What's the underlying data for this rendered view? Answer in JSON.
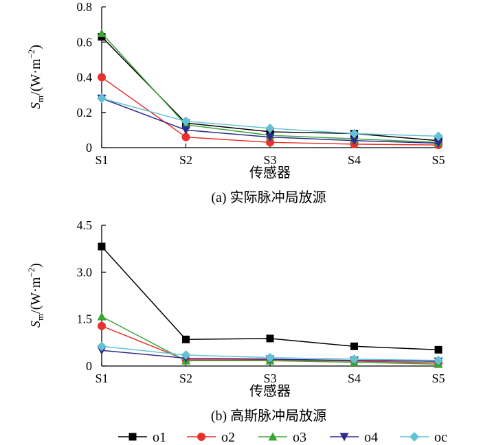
{
  "chart_data": [
    {
      "type": "line",
      "title": "(a)  实际脉冲局放源",
      "xlabel": "传感器",
      "ylabel_main": "S",
      "ylabel_sub": "m",
      "ylabel_unit": "/(W·m",
      "ylabel_exp": "−2",
      "ylabel_close": ")",
      "categories": [
        "S1",
        "S2",
        "S3",
        "S4",
        "S5"
      ],
      "ylim": [
        0,
        0.8
      ],
      "yticks": [
        "0",
        "0.2",
        "0.4",
        "0.6",
        "0.8"
      ],
      "yticks_values": [
        0,
        0.2,
        0.4,
        0.6,
        0.8
      ],
      "grid": false,
      "series": [
        {
          "name": "o1",
          "color": "#000000",
          "marker": "square",
          "values": [
            0.63,
            0.14,
            0.09,
            0.08,
            0.04
          ]
        },
        {
          "name": "o2",
          "color": "#e8322b",
          "marker": "circle",
          "values": [
            0.4,
            0.06,
            0.03,
            0.02,
            0.015
          ]
        },
        {
          "name": "o3",
          "color": "#3aa537",
          "marker": "triangle-up",
          "values": [
            0.65,
            0.13,
            0.07,
            0.05,
            0.03
          ]
        },
        {
          "name": "o4",
          "color": "#2e2a8c",
          "marker": "triangle-down",
          "values": [
            0.28,
            0.1,
            0.06,
            0.04,
            0.025
          ]
        },
        {
          "name": "oc",
          "color": "#62c2d4",
          "marker": "diamond",
          "values": [
            0.28,
            0.15,
            0.11,
            0.08,
            0.065
          ]
        }
      ]
    },
    {
      "type": "line",
      "title": "(b)  高斯脉冲局放源",
      "xlabel": "传感器",
      "ylabel_main": "S",
      "ylabel_sub": "m",
      "ylabel_unit": "/(W·m",
      "ylabel_exp": "−2",
      "ylabel_close": ")",
      "categories": [
        "S1",
        "S2",
        "S3",
        "S4",
        "S5"
      ],
      "ylim": [
        0,
        4.5
      ],
      "yticks": [
        "0",
        "1.5",
        "3.0",
        "4.5"
      ],
      "yticks_values": [
        0,
        1.5,
        3.0,
        4.5
      ],
      "grid": false,
      "series": [
        {
          "name": "o1",
          "color": "#000000",
          "marker": "square",
          "values": [
            3.82,
            0.85,
            0.88,
            0.63,
            0.52
          ]
        },
        {
          "name": "o2",
          "color": "#e8322b",
          "marker": "circle",
          "values": [
            1.28,
            0.2,
            0.2,
            0.16,
            0.1
          ]
        },
        {
          "name": "o3",
          "color": "#3aa537",
          "marker": "triangle-up",
          "values": [
            1.58,
            0.17,
            0.17,
            0.12,
            0.06
          ]
        },
        {
          "name": "o4",
          "color": "#2e2a8c",
          "marker": "triangle-down",
          "values": [
            0.5,
            0.25,
            0.22,
            0.18,
            0.15
          ]
        },
        {
          "name": "oc",
          "color": "#62c2d4",
          "marker": "diamond",
          "values": [
            0.63,
            0.35,
            0.27,
            0.22,
            0.18
          ]
        }
      ]
    }
  ],
  "legend": {
    "placement": "bottom",
    "items": [
      "o1",
      "o2",
      "o3",
      "o4",
      "oc"
    ]
  }
}
